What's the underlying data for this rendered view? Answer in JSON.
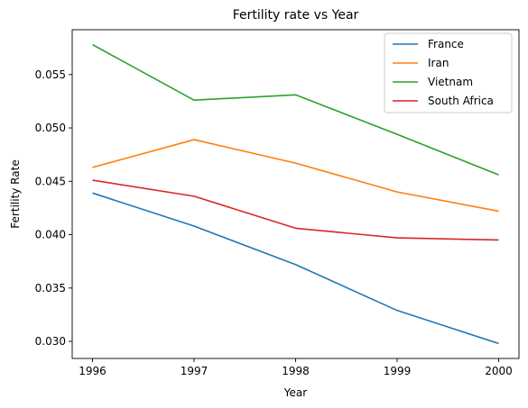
{
  "chart_data": {
    "type": "line",
    "title": "Fertility rate vs Year",
    "xlabel": "Year",
    "ylabel": "Fertility Rate",
    "x": [
      1996,
      1997,
      1998,
      1999,
      2000
    ],
    "x_ticks": [
      "1996",
      "1997",
      "1998",
      "1999",
      "2000"
    ],
    "xlim": [
      1995.8,
      2000.2
    ],
    "ylim": [
      0.0284,
      0.0592
    ],
    "y_ticks": [
      "0.030",
      "0.035",
      "0.040",
      "0.045",
      "0.050",
      "0.055"
    ],
    "y_tick_values": [
      0.03,
      0.035,
      0.04,
      0.045,
      0.05,
      0.055
    ],
    "grid": false,
    "legend_position": "top-right",
    "series": [
      {
        "name": "France",
        "color": "#1f77b4",
        "values": [
          0.0439,
          0.0408,
          0.0372,
          0.0329,
          0.0298
        ]
      },
      {
        "name": "Iran",
        "color": "#ff7f0e",
        "values": [
          0.0463,
          0.0489,
          0.0467,
          0.044,
          0.0422
        ]
      },
      {
        "name": "Vietnam",
        "color": "#2ca02c",
        "values": [
          0.0578,
          0.0526,
          0.0531,
          0.0494,
          0.0456
        ]
      },
      {
        "name": "South Africa",
        "color": "#d62728",
        "values": [
          0.0451,
          0.0436,
          0.0406,
          0.0397,
          0.0395
        ]
      }
    ]
  }
}
